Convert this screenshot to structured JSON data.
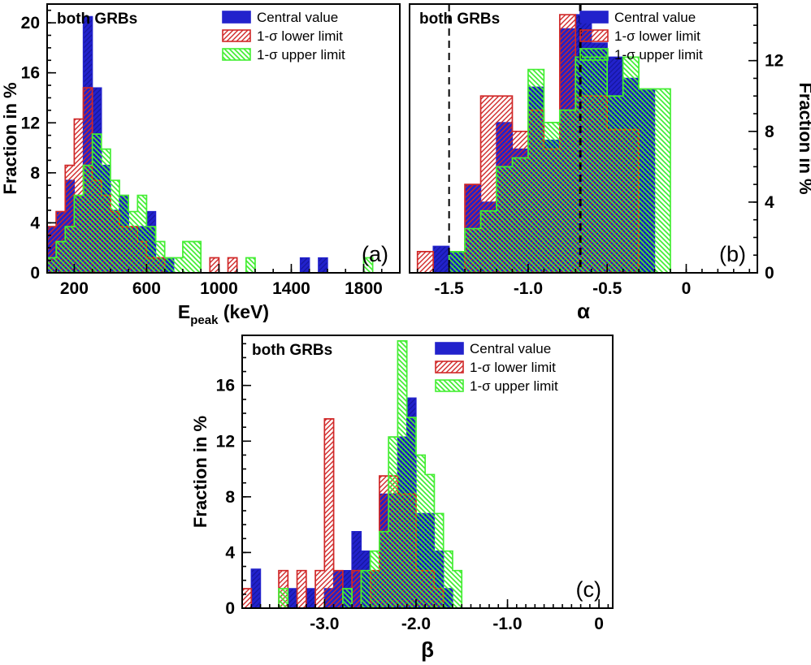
{
  "figure": {
    "background": "#ffffff"
  },
  "colors": {
    "central": "#2222cc",
    "central_hatch": "#15159e",
    "lower": "#d02828",
    "upper": "#44ee33",
    "axis": "#000000"
  },
  "legend": {
    "items": [
      {
        "key": "central",
        "label": "Central value"
      },
      {
        "key": "lower",
        "label": "1-σ lower limit"
      },
      {
        "key": "upper",
        "label": "1-σ upper limit"
      }
    ]
  },
  "chart_data": [
    {
      "id": "a",
      "type": "histogram",
      "corner_label": "(a)",
      "title": "both GRBs",
      "xlabel_parts": [
        {
          "text": "E"
        },
        {
          "text": "peak",
          "sub": true
        },
        {
          "text": " (keV)"
        }
      ],
      "xlabel_size": 23,
      "ylabel": "Fraction in %",
      "x_min": 50,
      "x_max": 2000,
      "y_min": 0,
      "y_max": 21.5,
      "x_ticks": {
        "values": [
          200,
          600,
          1000,
          1400,
          1800
        ],
        "labels": [
          "200",
          "600",
          "1000",
          "1400",
          "1800"
        ]
      },
      "x_minor_step": 100,
      "y_ticks": {
        "values": [
          0,
          4,
          8,
          12,
          16,
          20
        ],
        "labels": [
          "0",
          "4",
          "8",
          "12",
          "16",
          "20"
        ]
      },
      "y_minor_step": 1,
      "bin_start": 50,
      "bin_width": 50,
      "series": {
        "central": [
          3.7,
          4.9,
          7.4,
          6.2,
          20.5,
          14.8,
          8.6,
          5.0,
          6.2,
          3.7,
          3.7,
          4.9,
          1.2,
          1.2,
          0,
          0,
          0,
          0,
          0,
          0,
          0,
          0,
          0,
          0,
          0,
          0,
          0,
          0,
          1.2,
          0,
          1.2,
          0,
          0,
          0,
          0,
          0,
          0,
          0,
          0
        ],
        "lower": [
          3.7,
          4.9,
          8.6,
          12.3,
          14.8,
          7.4,
          6.2,
          4.9,
          3.7,
          3.7,
          2.5,
          1.2,
          1.2,
          0,
          0,
          0,
          0,
          0,
          1.2,
          0,
          1.2,
          0,
          0,
          0,
          0,
          0,
          0,
          0,
          0,
          0,
          0,
          0,
          0,
          0,
          0,
          0,
          0,
          0,
          0
        ],
        "upper": [
          1.2,
          2.5,
          3.7,
          6.2,
          8.6,
          11.1,
          9.9,
          7.4,
          6.2,
          4.9,
          6.2,
          3.7,
          2.5,
          1.2,
          1.2,
          2.5,
          2.5,
          0,
          0,
          0,
          0,
          0,
          1.2,
          0,
          0,
          0,
          0,
          0,
          0,
          0,
          0,
          0,
          0,
          0,
          0,
          1.2,
          0,
          0,
          0
        ]
      },
      "dashed_lines": []
    },
    {
      "id": "b",
      "type": "histogram",
      "corner_label": "(b)",
      "title": "both GRBs",
      "xlabel_parts": [
        {
          "text": "α"
        }
      ],
      "xlabel_size": 26,
      "ylabel": "Fraction in %",
      "x_min": -1.75,
      "x_max": 0.45,
      "y_min": 0,
      "y_max": 15.2,
      "x_ticks": {
        "values": [
          -1.5,
          -1.0,
          -0.5,
          0
        ],
        "labels": [
          "-1.5",
          "-1.0",
          "-0.5",
          "0"
        ]
      },
      "x_minor_step": 0.1,
      "y_ticks": {
        "values": [
          0,
          4,
          8,
          12
        ],
        "labels": [
          "0",
          "4",
          "8",
          "12"
        ]
      },
      "y_minor_step": 1,
      "bin_start": -1.7,
      "bin_width": 0.1,
      "series": {
        "central": [
          0,
          1.5,
          1.2,
          5.0,
          4.0,
          8.5,
          7.0,
          10.5,
          7.5,
          13.8,
          14.6,
          13.0,
          12.2,
          11.0,
          10.4,
          0,
          0,
          0,
          0,
          0,
          0
        ],
        "lower": [
          1.2,
          0,
          0,
          5.0,
          10.0,
          10.0,
          8.0,
          9.2,
          7.0,
          14.6,
          10.0,
          10.0,
          8.1,
          8.1,
          0,
          0,
          0,
          0,
          0,
          0,
          0
        ],
        "upper": [
          0,
          0,
          1.2,
          2.5,
          3.5,
          6.0,
          6.5,
          11.5,
          8.5,
          9.2,
          12.2,
          12.2,
          10.0,
          12.2,
          10.4,
          10.4,
          0,
          0,
          0,
          0,
          0
        ]
      },
      "dashed_lines": [
        {
          "x": -1.5,
          "width": 2
        },
        {
          "x": -0.67,
          "width": 3
        }
      ]
    },
    {
      "id": "c",
      "type": "histogram",
      "corner_label": "(c)",
      "title": "both GRBs",
      "xlabel_parts": [
        {
          "text": "β"
        }
      ],
      "xlabel_size": 26,
      "ylabel": "Fraction in %",
      "x_min": -3.9,
      "x_max": 0.15,
      "y_min": 0,
      "y_max": 19.6,
      "x_ticks": {
        "values": [
          -3.0,
          -2.0,
          -1.0,
          0
        ],
        "labels": [
          "-3.0",
          "-2.0",
          "-1.0",
          "0"
        ]
      },
      "x_minor_step": 0.1,
      "y_ticks": {
        "values": [
          0,
          4,
          8,
          12,
          16
        ],
        "labels": [
          "0",
          "4",
          "8",
          "12",
          "16"
        ]
      },
      "y_minor_step": 1,
      "bin_start": -3.9,
      "bin_width": 0.1,
      "series": {
        "central": [
          0,
          2.8,
          0,
          0,
          0,
          1.4,
          0,
          1.4,
          0,
          1.4,
          2.7,
          2.7,
          5.5,
          4.1,
          2.7,
          8.2,
          8.2,
          12.3,
          15.1,
          6.8,
          6.8,
          4.1,
          1.4,
          0,
          0,
          0,
          0,
          0,
          0,
          0,
          0,
          0,
          0,
          0,
          0,
          0,
          0,
          0,
          0
        ],
        "lower": [
          1.4,
          0,
          0,
          0,
          2.7,
          0,
          2.7,
          0,
          2.7,
          13.6,
          2.7,
          0,
          2.7,
          0,
          2.7,
          9.5,
          9.5,
          8.2,
          8.2,
          2.7,
          2.7,
          1.4,
          0,
          0,
          0,
          0,
          0,
          0,
          0,
          0,
          0,
          0,
          0,
          0,
          0,
          0,
          0,
          0,
          0
        ],
        "upper": [
          0,
          0,
          0,
          0,
          1.4,
          0,
          0,
          0,
          0,
          0,
          0,
          1.4,
          0,
          2.7,
          4.1,
          5.5,
          12.3,
          19.2,
          13.7,
          11.0,
          9.6,
          6.8,
          4.1,
          2.7,
          0,
          0,
          0,
          0,
          0,
          0,
          0,
          0,
          0,
          0,
          0,
          0,
          0,
          0,
          0
        ]
      },
      "dashed_lines": []
    }
  ]
}
